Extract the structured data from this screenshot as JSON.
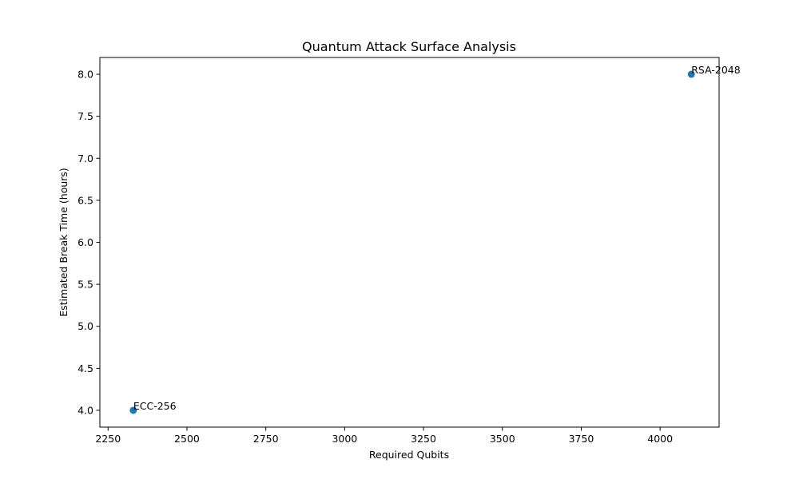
{
  "chart_data": {
    "type": "scatter",
    "title": "Quantum Attack Surface Analysis",
    "xlabel": "Required Qubits",
    "ylabel": "Estimated Break Time (hours)",
    "xlim": [
      2224,
      4187
    ],
    "ylim": [
      3.8,
      8.2
    ],
    "xticks": [
      2250,
      2500,
      2750,
      3000,
      3250,
      3500,
      3750,
      4000
    ],
    "yticks": [
      4.0,
      4.5,
      5.0,
      5.5,
      6.0,
      6.5,
      7.0,
      7.5,
      8.0
    ],
    "grid": false,
    "marker_color": "#1f77b4",
    "points": [
      {
        "label": "RSA-2048",
        "x": 4099,
        "y": 8.0
      },
      {
        "label": "ECC-256",
        "x": 2330,
        "y": 4.0
      }
    ]
  }
}
